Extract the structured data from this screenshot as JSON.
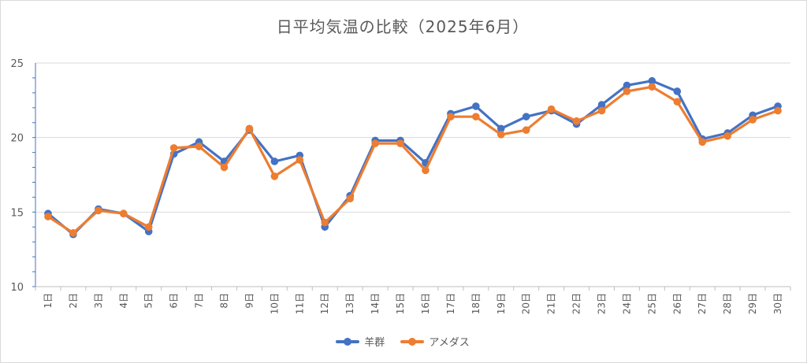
{
  "chart_data": {
    "type": "line",
    "title": "日平均気温の比較（2025年6月）",
    "categories": [
      "1日",
      "2日",
      "3日",
      "4日",
      "5日",
      "6日",
      "7日",
      "8日",
      "9日",
      "10日",
      "11日",
      "12日",
      "13日",
      "14日",
      "15日",
      "16日",
      "17日",
      "18日",
      "19日",
      "20日",
      "21日",
      "22日",
      "23日",
      "24日",
      "25日",
      "26日",
      "27日",
      "28日",
      "29日",
      "30日"
    ],
    "ylim": [
      10,
      25
    ],
    "yticks": [
      "10",
      "15",
      "20",
      "25"
    ],
    "grid": true,
    "legend_position": "bottom",
    "series": [
      {
        "name": "羊群",
        "color": "#4472C4",
        "values": [
          14.9,
          13.5,
          15.2,
          14.9,
          13.7,
          18.9,
          19.7,
          18.4,
          20.5,
          18.4,
          18.8,
          14.0,
          16.1,
          19.8,
          19.8,
          18.3,
          21.6,
          22.1,
          20.6,
          21.4,
          21.8,
          20.9,
          22.2,
          23.5,
          23.8,
          23.1,
          19.9,
          20.3,
          21.5,
          22.1
        ]
      },
      {
        "name": "アメダス",
        "color": "#ED7D31",
        "values": [
          14.7,
          13.6,
          15.1,
          14.9,
          14.0,
          19.3,
          19.4,
          18.0,
          20.6,
          17.4,
          18.5,
          14.3,
          15.9,
          19.6,
          19.6,
          17.8,
          21.4,
          21.4,
          20.2,
          20.5,
          21.9,
          21.1,
          21.8,
          23.1,
          23.4,
          22.4,
          19.7,
          20.1,
          21.2,
          21.8
        ]
      }
    ]
  }
}
